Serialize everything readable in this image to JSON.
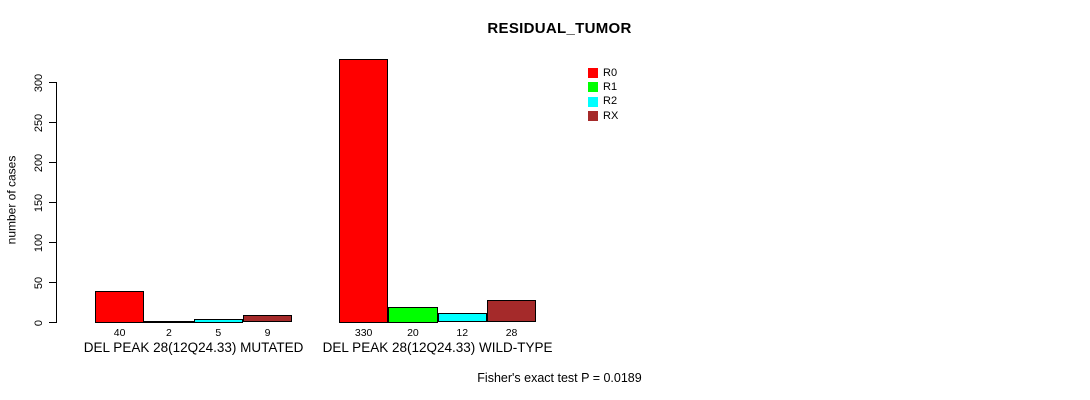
{
  "chart_data": {
    "type": "bar",
    "title": "RESIDUAL_TUMOR",
    "ylabel": "number of cases",
    "xlabel": "",
    "ylim": [
      0,
      300
    ],
    "yticks": [
      0,
      50,
      100,
      150,
      200,
      250,
      300
    ],
    "grid": false,
    "legend_position": "top-right",
    "categories": [
      "DEL PEAK 28(12Q24.33) MUTATED",
      "DEL PEAK 28(12Q24.33) WILD-TYPE"
    ],
    "series": [
      {
        "name": "R0",
        "color": "#FF0000",
        "values": [
          40,
          330
        ]
      },
      {
        "name": "R1",
        "color": "#00FF00",
        "values": [
          2,
          20
        ]
      },
      {
        "name": "R2",
        "color": "#00FFFF",
        "values": [
          5,
          12
        ]
      },
      {
        "name": "RX",
        "color": "#A52A2A",
        "values": [
          9,
          28
        ]
      }
    ],
    "bar_value_labels": [
      [
        40,
        2,
        5,
        9
      ],
      [
        330,
        20,
        12,
        28
      ]
    ],
    "footnote": "Fisher's exact test P = 0.0189"
  },
  "colors": {
    "background": "#FFFFFF",
    "axis": "#000000",
    "text": "#000000"
  }
}
